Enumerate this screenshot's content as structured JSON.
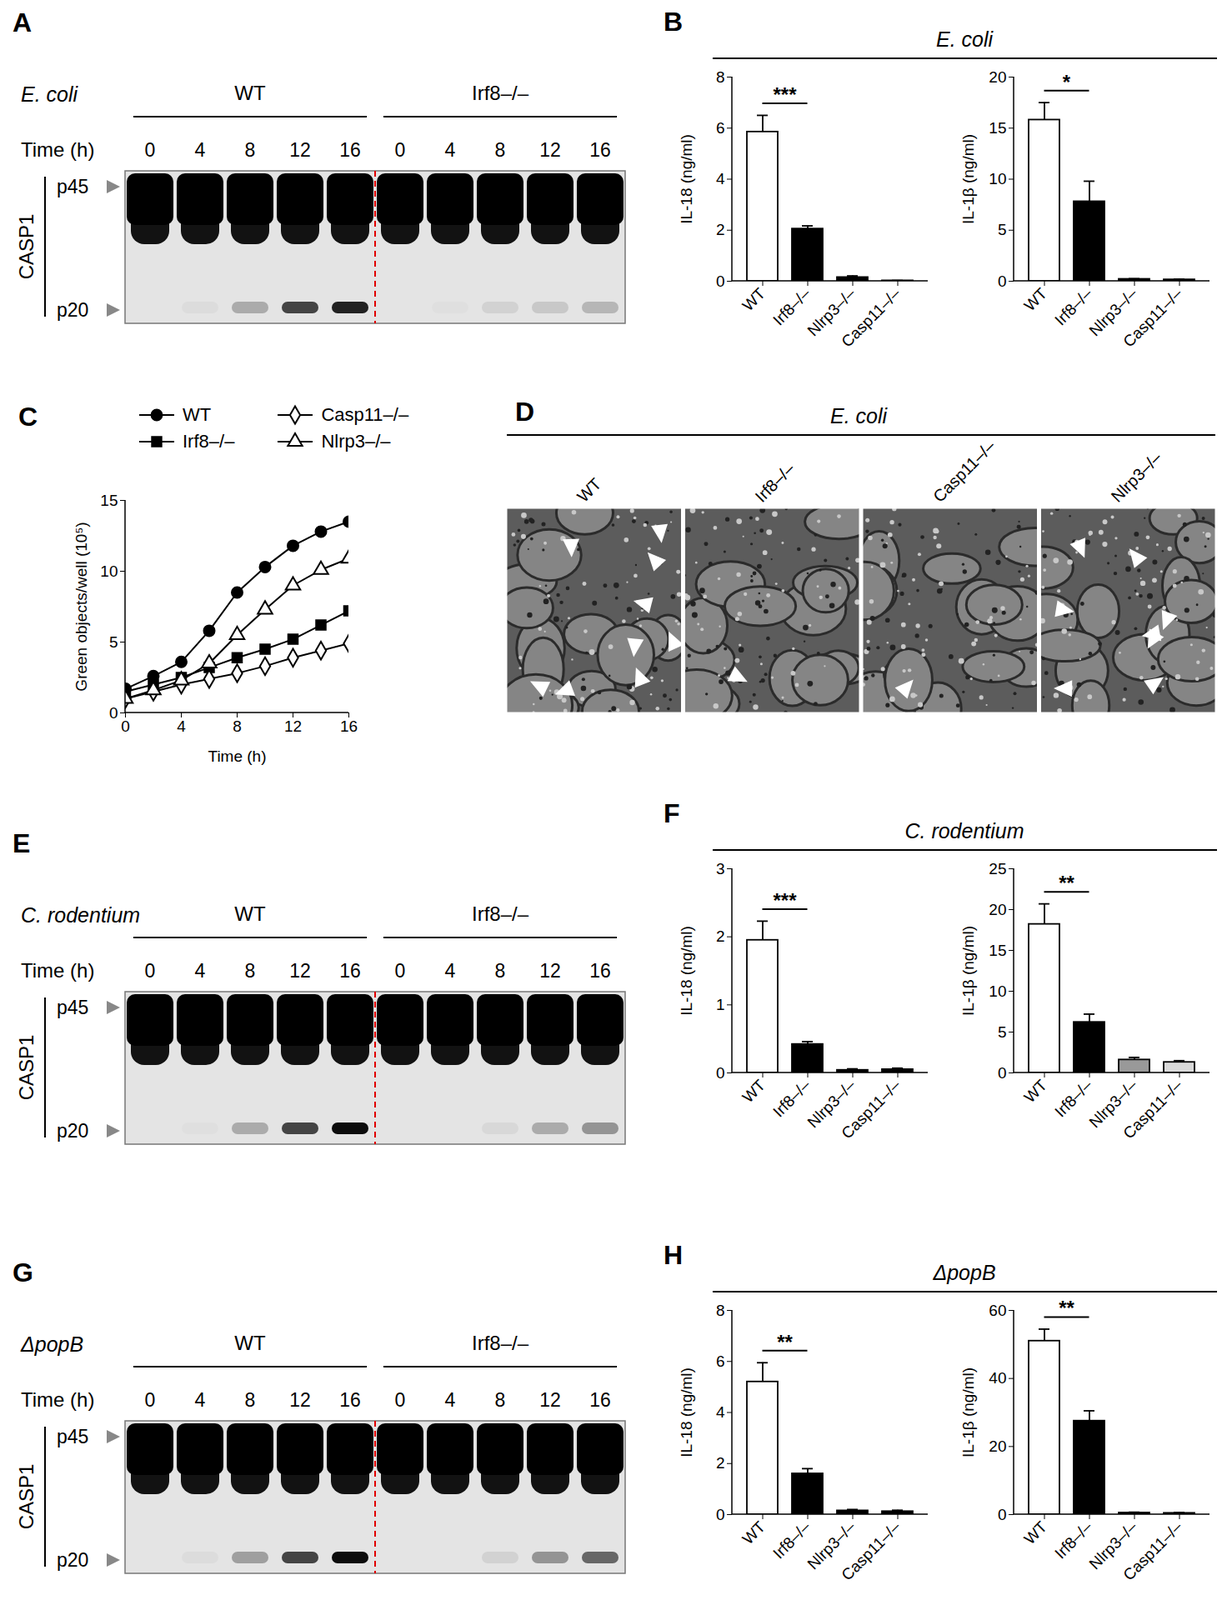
{
  "chart_data": [
    {
      "panel": "B",
      "type": "bar",
      "title": "E. coli",
      "subplots": [
        {
          "ylabel": "IL-18 (ng/ml)",
          "categories": [
            "WT",
            "Irf8–/–",
            "Nlrp3–/–",
            "Casp11–/–"
          ],
          "values": [
            5.85,
            2.05,
            0.15,
            0.02
          ],
          "errors": [
            0.65,
            0.12,
            0.06,
            0.01
          ],
          "colors": [
            "#ffffff",
            "#000000",
            "#000000",
            "#000000"
          ],
          "ylim": [
            0,
            8
          ],
          "yticks": [
            0,
            2,
            4,
            6,
            8
          ],
          "significance": {
            "label": "***",
            "between": [
              0,
              1
            ]
          }
        },
        {
          "ylabel": "IL-1β (ng/ml)",
          "categories": [
            "WT",
            "Irf8–/–",
            "Nlrp3–/–",
            "Casp11–/–"
          ],
          "values": [
            15.8,
            7.8,
            0.2,
            0.15
          ],
          "errors": [
            1.7,
            2.0,
            0.05,
            0.05
          ],
          "colors": [
            "#ffffff",
            "#000000",
            "#000000",
            "#000000"
          ],
          "ylim": [
            0,
            20
          ],
          "yticks": [
            0,
            5,
            10,
            15,
            20
          ],
          "significance": {
            "label": "*",
            "between": [
              0,
              1
            ]
          }
        }
      ]
    },
    {
      "panel": "C",
      "type": "line",
      "x": [
        0,
        2,
        4,
        6,
        8,
        10,
        12,
        14,
        16
      ],
      "xlim": [
        0,
        16
      ],
      "xticks": [
        0,
        4,
        8,
        12,
        16
      ],
      "ylim": [
        0,
        15
      ],
      "yticks": [
        0,
        5,
        10,
        15
      ],
      "xlabel": "Time (h)",
      "ylabel": "Green objects/well (10⁵)",
      "legend": "top",
      "series": [
        {
          "name": "WT",
          "color": "#000000",
          "marker": "filled-circle",
          "values": [
            1.7,
            2.6,
            3.6,
            5.8,
            8.5,
            10.3,
            11.8,
            12.8,
            13.5
          ]
        },
        {
          "name": "Irf8–/–",
          "color": "#000000",
          "marker": "filled-square",
          "values": [
            1.5,
            2.0,
            2.5,
            3.2,
            3.9,
            4.5,
            5.2,
            6.2,
            7.2
          ]
        },
        {
          "name": "Casp11–/–",
          "color": "#000000",
          "marker": "open-diamond",
          "values": [
            1.0,
            1.5,
            2.0,
            2.4,
            2.8,
            3.3,
            3.9,
            4.4,
            4.9
          ]
        },
        {
          "name": "Nlrp3–/–",
          "color": "#000000",
          "marker": "open-triangle",
          "values": [
            1.0,
            1.6,
            2.3,
            3.5,
            5.5,
            7.3,
            9.0,
            10.1,
            10.9
          ]
        }
      ]
    },
    {
      "panel": "F",
      "type": "bar",
      "title": "C. rodentium",
      "subplots": [
        {
          "ylabel": "IL-18 (ng/ml)",
          "categories": [
            "WT",
            "Irf8–/–",
            "Nlrp3–/–",
            "Casp11–/–"
          ],
          "values": [
            1.95,
            0.42,
            0.04,
            0.05
          ],
          "errors": [
            0.28,
            0.04,
            0.02,
            0.02
          ],
          "colors": [
            "#ffffff",
            "#000000",
            "#000000",
            "#000000"
          ],
          "ylim": [
            0,
            3
          ],
          "yticks": [
            0,
            1,
            2,
            3
          ],
          "significance": {
            "label": "***",
            "between": [
              0,
              1
            ]
          }
        },
        {
          "ylabel": "IL-1β (ng/ml)",
          "categories": [
            "WT",
            "Irf8–/–",
            "Nlrp3–/–",
            "Casp11–/–"
          ],
          "values": [
            18.2,
            6.2,
            1.6,
            1.3
          ],
          "errors": [
            2.5,
            1.0,
            0.3,
            0.2
          ],
          "colors": [
            "#ffffff",
            "#000000",
            "#999999",
            "#d9d9d9"
          ],
          "ylim": [
            0,
            25
          ],
          "yticks": [
            0,
            5,
            10,
            15,
            20,
            25
          ],
          "significance": {
            "label": "**",
            "between": [
              0,
              1
            ]
          }
        }
      ]
    },
    {
      "panel": "H",
      "type": "bar",
      "title": "ΔpopB",
      "subplots": [
        {
          "ylabel": "IL-18 (ng/ml)",
          "categories": [
            "WT",
            "Irf8–/–",
            "Nlrp3–/–",
            "Casp11–/–"
          ],
          "values": [
            5.2,
            1.6,
            0.15,
            0.12
          ],
          "errors": [
            0.75,
            0.2,
            0.05,
            0.05
          ],
          "colors": [
            "#ffffff",
            "#000000",
            "#000000",
            "#000000"
          ],
          "ylim": [
            0,
            8
          ],
          "yticks": [
            0,
            2,
            4,
            6,
            8
          ],
          "significance": {
            "label": "**",
            "between": [
              0,
              1
            ]
          }
        },
        {
          "ylabel": "IL-1β (ng/ml)",
          "categories": [
            "WT",
            "Irf8–/–",
            "Nlrp3–/–",
            "Casp11–/–"
          ],
          "values": [
            51,
            27.5,
            0.5,
            0.4
          ],
          "errors": [
            3.5,
            3.0,
            0.2,
            0.2
          ],
          "colors": [
            "#ffffff",
            "#000000",
            "#000000",
            "#000000"
          ],
          "ylim": [
            0,
            60
          ],
          "yticks": [
            0,
            20,
            40,
            60
          ],
          "significance": {
            "label": "**",
            "between": [
              0,
              1
            ]
          }
        }
      ]
    }
  ],
  "blots": [
    {
      "panel": "A",
      "title": "E. coli",
      "time_label": "Time (h)",
      "protein": "CASP1",
      "bands": [
        "p45",
        "p20"
      ],
      "groups": [
        {
          "label": "WT",
          "times": [
            0,
            4,
            8,
            12,
            16
          ],
          "p20": [
            0,
            0.03,
            0.25,
            0.7,
            0.85
          ]
        },
        {
          "label": "Irf8–/–",
          "times": [
            0,
            4,
            8,
            12,
            16
          ],
          "p20": [
            0,
            0.02,
            0.08,
            0.12,
            0.2
          ]
        }
      ]
    },
    {
      "panel": "E",
      "title": "C. rodentium",
      "time_label": "Time (h)",
      "protein": "CASP1",
      "bands": [
        "p45",
        "p20"
      ],
      "groups": [
        {
          "label": "WT",
          "times": [
            0,
            4,
            8,
            12,
            16
          ],
          "p20": [
            0,
            0.02,
            0.25,
            0.7,
            0.95
          ]
        },
        {
          "label": "Irf8–/–",
          "times": [
            0,
            4,
            8,
            12,
            16
          ],
          "p20": [
            0,
            0,
            0.05,
            0.25,
            0.35
          ]
        }
      ]
    },
    {
      "panel": "G",
      "title": "ΔpopB",
      "time_label": "Time (h)",
      "protein": "CASP1",
      "bands": [
        "p45",
        "p20"
      ],
      "groups": [
        {
          "label": "WT",
          "times": [
            0,
            4,
            8,
            12,
            16
          ],
          "p20": [
            0,
            0.03,
            0.3,
            0.7,
            0.95
          ]
        },
        {
          "label": "Irf8–/–",
          "times": [
            0,
            4,
            8,
            12,
            16
          ],
          "p20": [
            0,
            0,
            0.08,
            0.35,
            0.55
          ]
        }
      ]
    }
  ],
  "micrographs": {
    "panel": "D",
    "title": "E. coli",
    "images": [
      {
        "label": "WT",
        "arrowheads": 9
      },
      {
        "label": "Irf8–/–",
        "arrowheads": 1
      },
      {
        "label": "Casp11–/–",
        "arrowheads": 1
      },
      {
        "label": "Nlrp3–/–",
        "arrowheads": 8
      }
    ]
  }
}
